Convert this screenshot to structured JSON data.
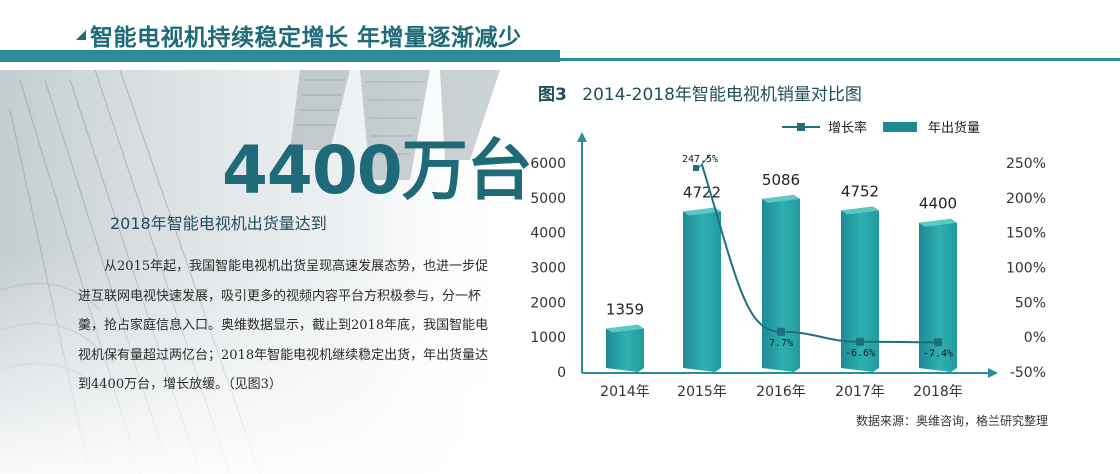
{
  "header": {
    "title": "智能电视机持续稳定增长  年增量逐渐减少",
    "accent_color": "#2a8c9c"
  },
  "intro": {
    "big_number": "4400万台",
    "subhead": "2018年智能电视机出货量达到",
    "paragraph": "从2015年起，我国智能电视机出货呈现高速发展态势，也进一步促进互联网电视快速发展，吸引更多的视频内容平台方积极参与，分一杯羹，抢占家庭信息入口。奥维数据显示，截止到2018年底，我国智能电视机保有量超过两亿台；2018年智能电视机继续稳定出货，年出货量达到4400万台，增长放缓。（见图3）"
  },
  "chart_title": {
    "fig": "图3",
    "text": "2014-2018年智能电视机销量对比图"
  },
  "source": "数据来源：奥维咨询，格兰研究整理",
  "chart_data": {
    "type": "bar",
    "categories": [
      "2014年",
      "2015年",
      "2016年",
      "2017年",
      "2018年"
    ],
    "series": [
      {
        "name": "年出货量",
        "type": "bar",
        "values": [
          1359,
          4722,
          5086,
          4752,
          4400
        ],
        "data_labels": [
          "1359",
          "4722",
          "5086",
          "4752",
          "4400"
        ],
        "color": "#2aa6a6",
        "axis": "left"
      },
      {
        "name": "增长率",
        "type": "line",
        "values": [
          null,
          247.5,
          7.7,
          -6.6,
          -7.4
        ],
        "data_labels": [
          "",
          "247.5%",
          "7.7%",
          "-6.6%",
          "-7.4%"
        ],
        "color": "#1f6f80",
        "axis": "right"
      }
    ],
    "y_left": {
      "min": 0,
      "max": 6000,
      "ticks": [
        "0",
        "1000",
        "2000",
        "3000",
        "4000",
        "5000",
        "6000"
      ]
    },
    "y_right": {
      "min": -50,
      "max": 250,
      "ticks": [
        "-50%",
        "0%",
        "50%",
        "100%",
        "150%",
        "200%",
        "250%"
      ]
    },
    "legend_position": "top-right",
    "grid": false
  }
}
